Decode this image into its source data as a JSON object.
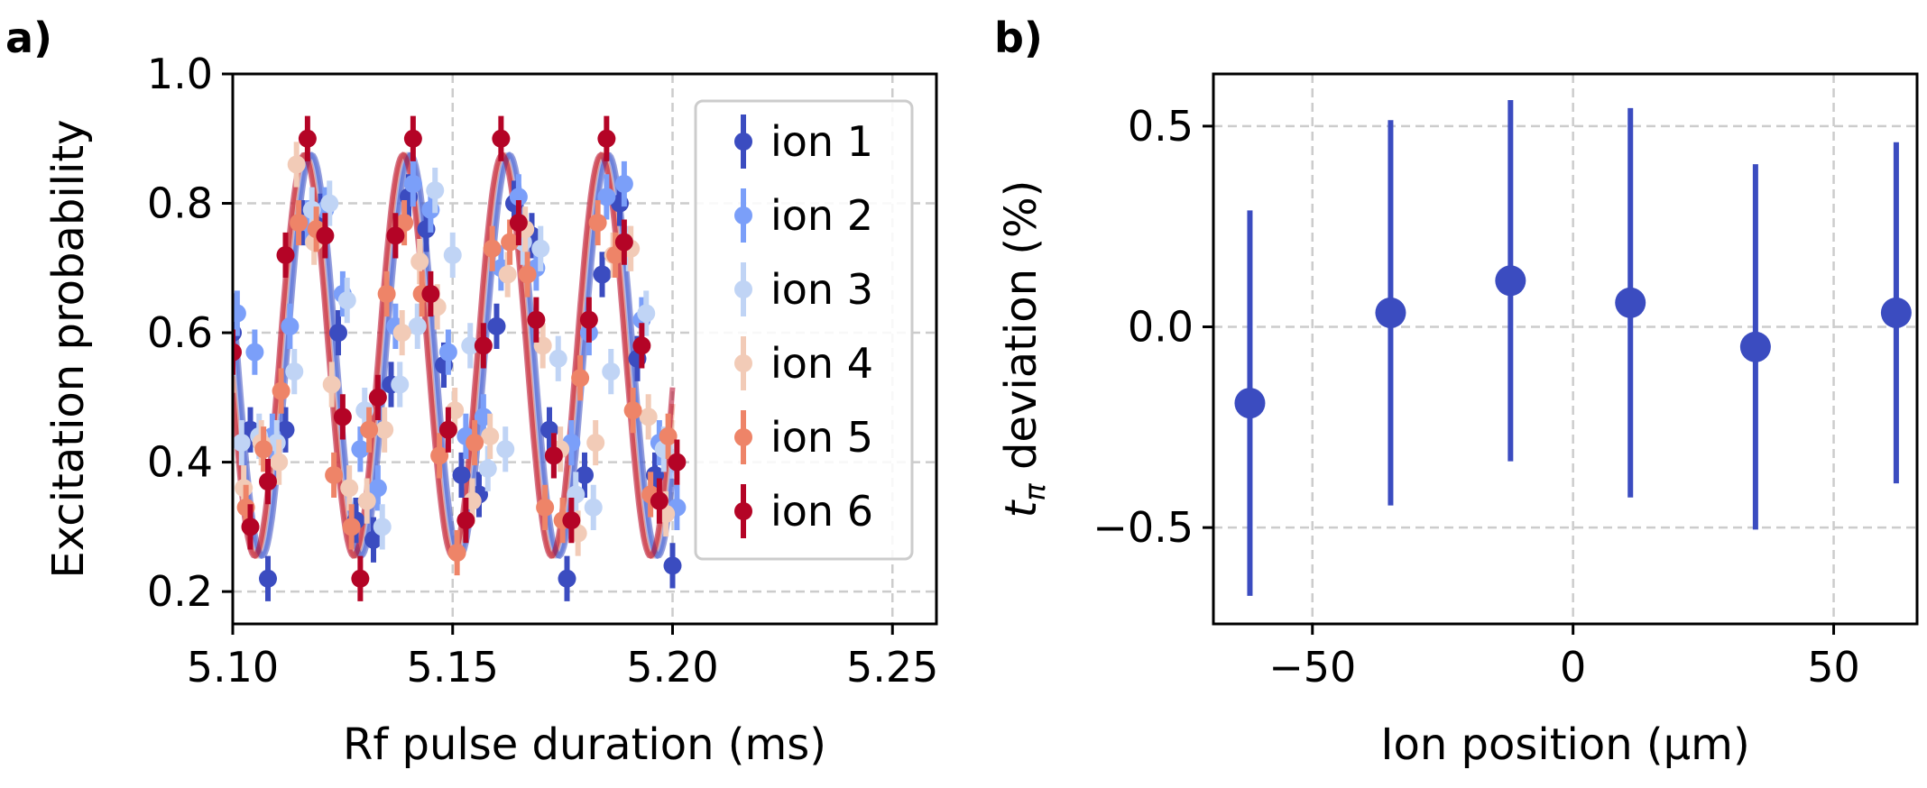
{
  "panels": {
    "a": {
      "label": "a)"
    },
    "b": {
      "label": "b)"
    }
  },
  "chart_data": [
    {
      "type": "scatter",
      "panel": "a",
      "xlabel": "Rf pulse duration (ms)",
      "ylabel": "Excitation probability",
      "xlim": [
        5.1,
        5.26
      ],
      "ylim": [
        0.15,
        1.0
      ],
      "xticks": [
        5.1,
        5.15,
        5.2,
        5.25
      ],
      "xtick_labels": [
        "5.10",
        "5.15",
        "5.20",
        "5.25"
      ],
      "yticks": [
        0.2,
        0.4,
        0.6,
        0.8,
        1.0
      ],
      "ytick_labels": [
        "0.2",
        "0.4",
        "0.6",
        "0.8",
        "1.0"
      ],
      "grid": true,
      "legend_position": "top-right",
      "fit_model": {
        "center": 0.565,
        "amplitude": 0.31,
        "period_ms": 0.0225,
        "peak_ms": 5.117,
        "x_range": [
          5.1,
          5.2
        ]
      },
      "series": [
        {
          "name": "ion 1",
          "color": "#3b4cc0",
          "yerr": 0.035,
          "x": [
            5.1,
            5.104,
            5.108,
            5.112,
            5.116,
            5.12,
            5.124,
            5.128,
            5.132,
            5.136,
            5.14,
            5.144,
            5.148,
            5.152,
            5.156,
            5.16,
            5.164,
            5.168,
            5.172,
            5.176,
            5.18,
            5.184,
            5.188,
            5.192,
            5.196,
            5.2
          ],
          "y": [
            0.6,
            0.45,
            0.22,
            0.45,
            0.77,
            0.78,
            0.6,
            0.31,
            0.28,
            0.52,
            0.81,
            0.76,
            0.55,
            0.38,
            0.35,
            0.61,
            0.8,
            0.75,
            0.45,
            0.22,
            0.38,
            0.69,
            0.8,
            0.56,
            0.38,
            0.24
          ]
        },
        {
          "name": "ion 2",
          "color": "#7b9ff9",
          "yerr": 0.035,
          "x": [
            5.101,
            5.105,
            5.109,
            5.113,
            5.117,
            5.121,
            5.125,
            5.129,
            5.133,
            5.137,
            5.141,
            5.145,
            5.149,
            5.153,
            5.157,
            5.161,
            5.165,
            5.169,
            5.173,
            5.177,
            5.181,
            5.185,
            5.189,
            5.193,
            5.197,
            5.201
          ],
          "y": [
            0.63,
            0.57,
            0.44,
            0.61,
            0.77,
            0.79,
            0.66,
            0.42,
            0.36,
            0.61,
            0.83,
            0.79,
            0.57,
            0.44,
            0.47,
            0.7,
            0.81,
            0.7,
            0.41,
            0.43,
            0.6,
            0.81,
            0.83,
            0.62,
            0.43,
            0.33
          ]
        },
        {
          "name": "ion 3",
          "color": "#c0d4f5",
          "yerr": 0.035,
          "x": [
            5.102,
            5.106,
            5.11,
            5.114,
            5.118,
            5.122,
            5.126,
            5.13,
            5.134,
            5.138,
            5.142,
            5.146,
            5.15,
            5.154,
            5.158,
            5.162,
            5.166,
            5.17,
            5.174,
            5.178,
            5.182,
            5.186,
            5.19,
            5.194,
            5.198
          ],
          "y": [
            0.43,
            0.44,
            0.43,
            0.54,
            0.79,
            0.8,
            0.65,
            0.48,
            0.3,
            0.52,
            0.61,
            0.82,
            0.72,
            0.58,
            0.39,
            0.42,
            0.74,
            0.73,
            0.56,
            0.35,
            0.33,
            0.54,
            0.73,
            0.63,
            0.42
          ]
        },
        {
          "name": "ion 4",
          "color": "#f2cbb7",
          "yerr": 0.035,
          "x": [
            5.1025,
            5.1065,
            5.1105,
            5.1145,
            5.1185,
            5.1225,
            5.1265,
            5.1305,
            5.1345,
            5.1385,
            5.1425,
            5.1465,
            5.1505,
            5.1545,
            5.1585,
            5.1625,
            5.1665,
            5.1705,
            5.1745,
            5.1785,
            5.1825,
            5.1865,
            5.1905,
            5.1945,
            5.1985
          ],
          "y": [
            0.36,
            0.43,
            0.4,
            0.86,
            0.74,
            0.52,
            0.36,
            0.34,
            0.45,
            0.6,
            0.71,
            0.64,
            0.48,
            0.34,
            0.44,
            0.69,
            0.76,
            0.58,
            0.42,
            0.29,
            0.43,
            0.72,
            0.73,
            0.47,
            0.32
          ]
        },
        {
          "name": "ion 5",
          "color": "#ee8468",
          "yerr": 0.035,
          "x": [
            5.103,
            5.107,
            5.111,
            5.115,
            5.119,
            5.123,
            5.127,
            5.131,
            5.135,
            5.139,
            5.143,
            5.147,
            5.151,
            5.155,
            5.159,
            5.163,
            5.167,
            5.171,
            5.175,
            5.179,
            5.183,
            5.187,
            5.191,
            5.195,
            5.199
          ],
          "y": [
            0.33,
            0.42,
            0.51,
            0.77,
            0.76,
            0.38,
            0.3,
            0.45,
            0.66,
            0.77,
            0.66,
            0.41,
            0.26,
            0.43,
            0.73,
            0.74,
            0.69,
            0.33,
            0.31,
            0.53,
            0.77,
            0.72,
            0.48,
            0.35,
            0.44
          ]
        },
        {
          "name": "ion 6",
          "color": "#b40426",
          "yerr": 0.035,
          "x": [
            5.1,
            5.104,
            5.108,
            5.112,
            5.117,
            5.121,
            5.125,
            5.129,
            5.133,
            5.137,
            5.141,
            5.145,
            5.149,
            5.153,
            5.157,
            5.161,
            5.165,
            5.169,
            5.173,
            5.177,
            5.181,
            5.185,
            5.189,
            5.193,
            5.197,
            5.201
          ],
          "y": [
            0.57,
            0.3,
            0.37,
            0.72,
            0.9,
            0.75,
            0.47,
            0.22,
            0.5,
            0.75,
            0.9,
            0.66,
            0.45,
            0.31,
            0.58,
            0.9,
            0.77,
            0.62,
            0.41,
            0.31,
            0.62,
            0.9,
            0.74,
            0.58,
            0.34,
            0.4
          ]
        }
      ]
    },
    {
      "type": "scatter",
      "panel": "b",
      "xlabel": "Ion position (μm)",
      "ylabel_symbol": "t",
      "ylabel_subscript": "π",
      "ylabel": " deviation (%)",
      "xlim": [
        -69,
        66
      ],
      "ylim": [
        -0.74,
        0.63
      ],
      "xticks": [
        -50,
        0,
        50
      ],
      "xtick_labels": [
        "−50",
        "0",
        "50"
      ],
      "yticks": [
        -0.5,
        0.0,
        0.5
      ],
      "ytick_labels": [
        "−0.5",
        "0.0",
        "0.5"
      ],
      "grid": true,
      "series": [
        {
          "color": "#3b4cc0",
          "x": [
            -62,
            -35,
            -12,
            11,
            35,
            62
          ],
          "y": [
            -0.19,
            0.035,
            0.115,
            0.06,
            -0.05,
            0.035
          ],
          "yerr": [
            0.48,
            0.48,
            0.45,
            0.485,
            0.455,
            0.425
          ]
        }
      ]
    }
  ]
}
